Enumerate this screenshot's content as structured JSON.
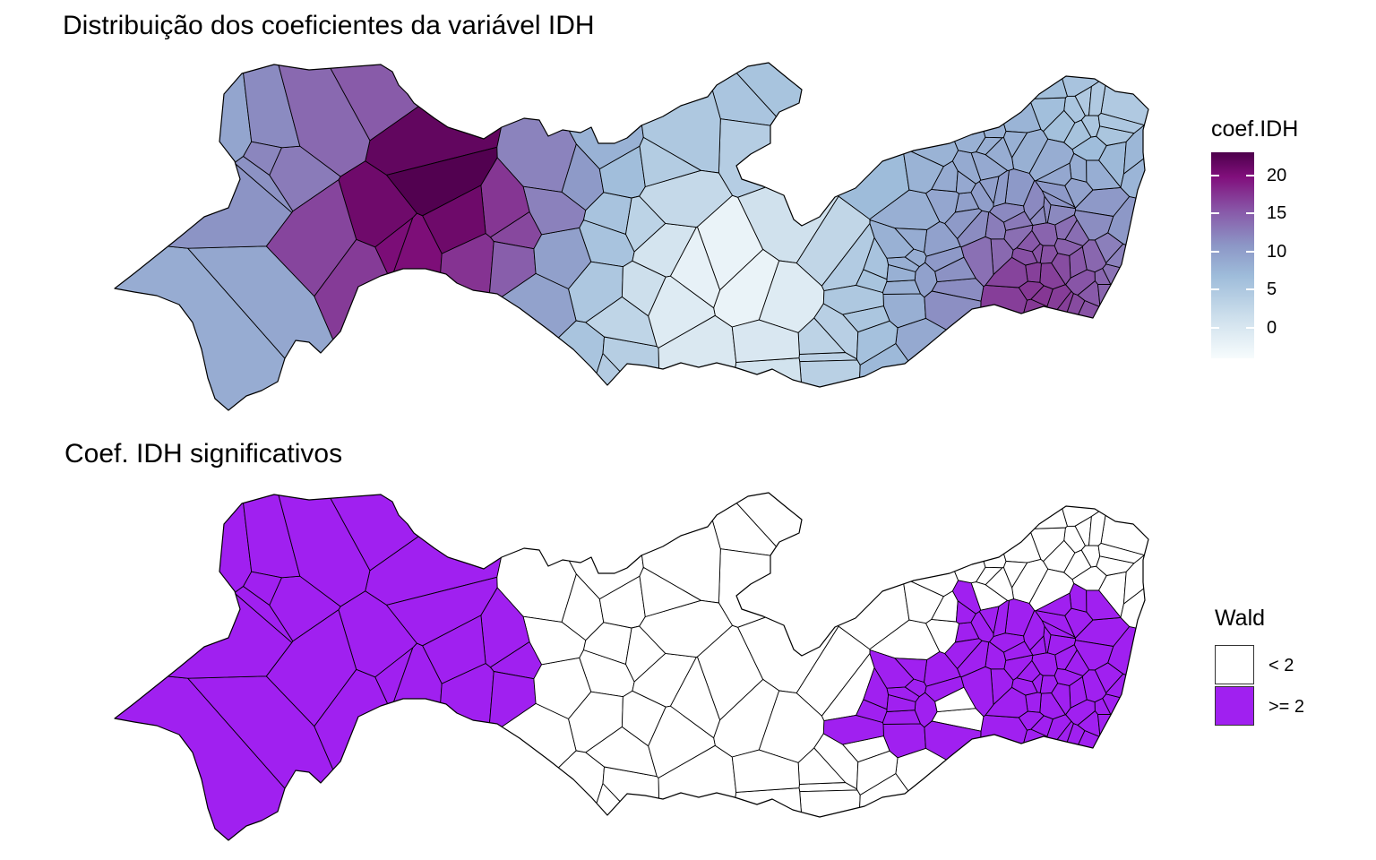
{
  "titles": {
    "top": "Distribuição dos coeficientes da variável IDH",
    "bottom": "Coef. IDH significativos"
  },
  "legend_coef": {
    "title": "coef.IDH",
    "ticks": [
      "0",
      "5",
      "10",
      "15",
      "20"
    ],
    "tick_values": [
      0,
      5,
      10,
      15,
      20
    ],
    "range": [
      -4,
      23
    ],
    "palette": [
      "#f7fcfd",
      "#cddfec",
      "#9ebcda",
      "#8c96c6",
      "#8856a7",
      "#810f7c",
      "#4d004b"
    ]
  },
  "legend_wald": {
    "title": "Wald",
    "items": [
      {
        "label": "< 2",
        "color": "#ffffff"
      },
      {
        "label": ">= 2",
        "color": "#a020f0"
      }
    ]
  },
  "colors": {
    "border": "#000000",
    "significant": "#a020f0",
    "not_significant": "#ffffff"
  }
}
